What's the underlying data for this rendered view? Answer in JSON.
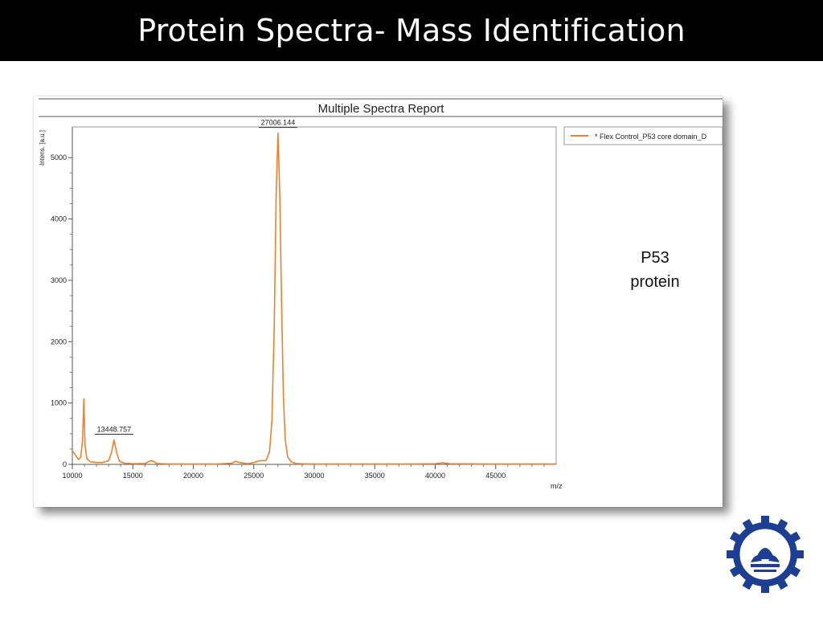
{
  "slide": {
    "title": "Protein Spectra- Mass Identification",
    "side_label_line1": "P53",
    "side_label_line2": "protein"
  },
  "report": {
    "heading": "Multiple Spectra Report",
    "legend_entry": "* Flex Control_P53 core domain_D",
    "y_axis_label": "Intens. [a.u.]",
    "x_axis_label": "m/z",
    "series_color": "#f07f2b"
  },
  "chart_data": {
    "type": "line",
    "title": "Multiple Spectra Report",
    "xlabel": "m/z",
    "ylabel": "Intens. [a.u.]",
    "xlim": [
      10000,
      50000
    ],
    "ylim": [
      0,
      5500
    ],
    "x_ticks": [
      10000,
      15000,
      20000,
      25000,
      30000,
      35000,
      40000,
      45000
    ],
    "y_ticks": [
      0,
      1000,
      2000,
      3000,
      4000,
      5000
    ],
    "x_tick_labels": [
      "10000",
      "15000",
      "20000",
      "25000",
      "30000",
      "35000",
      "40000",
      "45000"
    ],
    "y_tick_labels": [
      "0",
      "1000",
      "2000",
      "3000",
      "4000",
      "5000"
    ],
    "grid": false,
    "legend_position": "top-right",
    "series": [
      {
        "name": "* Flex Control_P53 core domain_D",
        "color": "#f07f2b",
        "x": [
          10000,
          10150,
          10300,
          10500,
          10700,
          10850,
          10950,
          11050,
          11200,
          11500,
          12000,
          12500,
          13000,
          13250,
          13449,
          13650,
          13900,
          14300,
          15000,
          16000,
          16500,
          16700,
          17000,
          18000,
          20000,
          22000,
          23200,
          23500,
          23800,
          24500,
          25000,
          25500,
          26000,
          26300,
          26500,
          26700,
          26850,
          27006,
          27150,
          27300,
          27450,
          27600,
          27800,
          28100,
          28500,
          29500,
          32000,
          35000,
          38000,
          40000,
          40600,
          41200,
          44000,
          47000,
          50000
        ],
        "y": [
          220,
          180,
          140,
          80,
          120,
          400,
          1070,
          300,
          90,
          40,
          30,
          30,
          60,
          200,
          400,
          200,
          50,
          20,
          10,
          15,
          60,
          50,
          15,
          5,
          5,
          5,
          20,
          50,
          30,
          10,
          30,
          60,
          60,
          200,
          700,
          2300,
          4400,
          5400,
          4400,
          2600,
          1100,
          400,
          120,
          40,
          15,
          5,
          5,
          5,
          5,
          10,
          25,
          10,
          5,
          5,
          5
        ]
      }
    ],
    "annotations": [
      {
        "label": "27006.144",
        "x": 27006,
        "y": 5400
      },
      {
        "label": "13448.757",
        "x": 13449,
        "y": 400
      }
    ]
  }
}
